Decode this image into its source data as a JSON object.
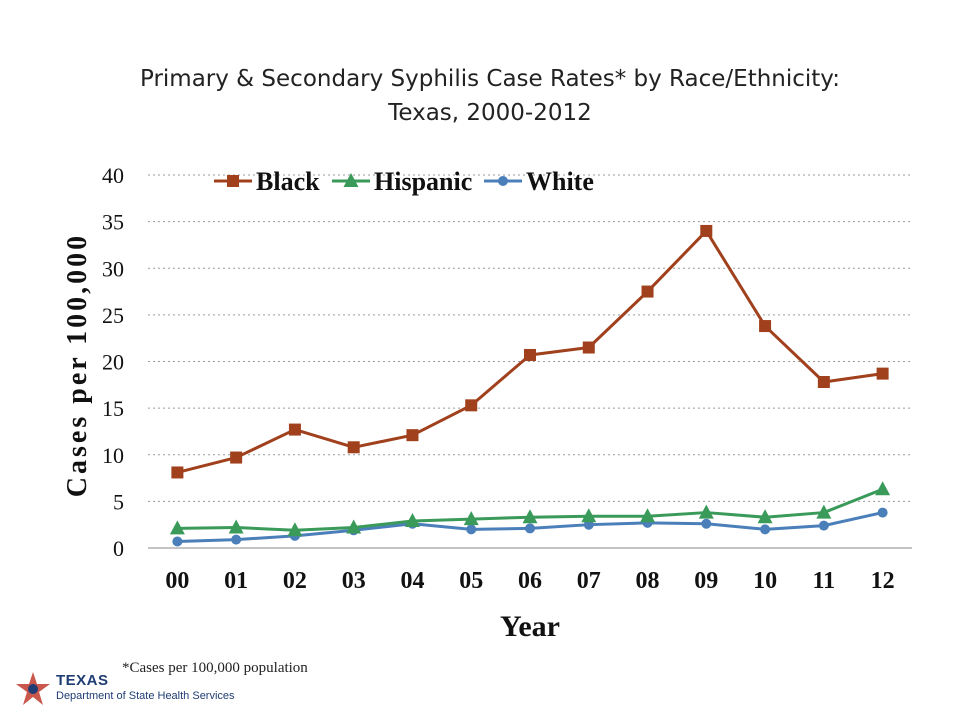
{
  "title": {
    "line1": "Primary & Secondary Syphilis Case Rates* by Race/Ethnicity:",
    "line2": "Texas, 2000-2012"
  },
  "footnote": "*Cases per 100,000 population",
  "logo": {
    "name": "TEXAS",
    "subtitle": "Department of State Health Services"
  },
  "chart_data": {
    "type": "line",
    "xlabel": "Year",
    "ylabel": "Cases per 100,000",
    "categories": [
      "00",
      "01",
      "02",
      "03",
      "04",
      "05",
      "06",
      "07",
      "08",
      "09",
      "10",
      "11",
      "12"
    ],
    "ylim": [
      0,
      40
    ],
    "yticks": [
      0,
      5,
      10,
      15,
      20,
      25,
      30,
      35,
      40
    ],
    "grid": true,
    "legend_position": "top",
    "series": [
      {
        "name": "Black",
        "color": "#a0401c",
        "marker": "square",
        "values": [
          8.1,
          9.7,
          12.7,
          10.8,
          12.1,
          15.3,
          20.7,
          21.5,
          27.5,
          34.0,
          23.8,
          17.8,
          18.7
        ]
      },
      {
        "name": "Hispanic",
        "color": "#3a9a5a",
        "marker": "triangle",
        "values": [
          2.1,
          2.2,
          1.9,
          2.2,
          2.9,
          3.1,
          3.3,
          3.4,
          3.4,
          3.8,
          3.3,
          3.8,
          6.3
        ]
      },
      {
        "name": "White",
        "color": "#4b7fba",
        "marker": "circle",
        "values": [
          0.7,
          0.9,
          1.3,
          1.9,
          2.6,
          2.0,
          2.1,
          2.5,
          2.7,
          2.6,
          2.0,
          2.4,
          3.8
        ]
      }
    ]
  }
}
